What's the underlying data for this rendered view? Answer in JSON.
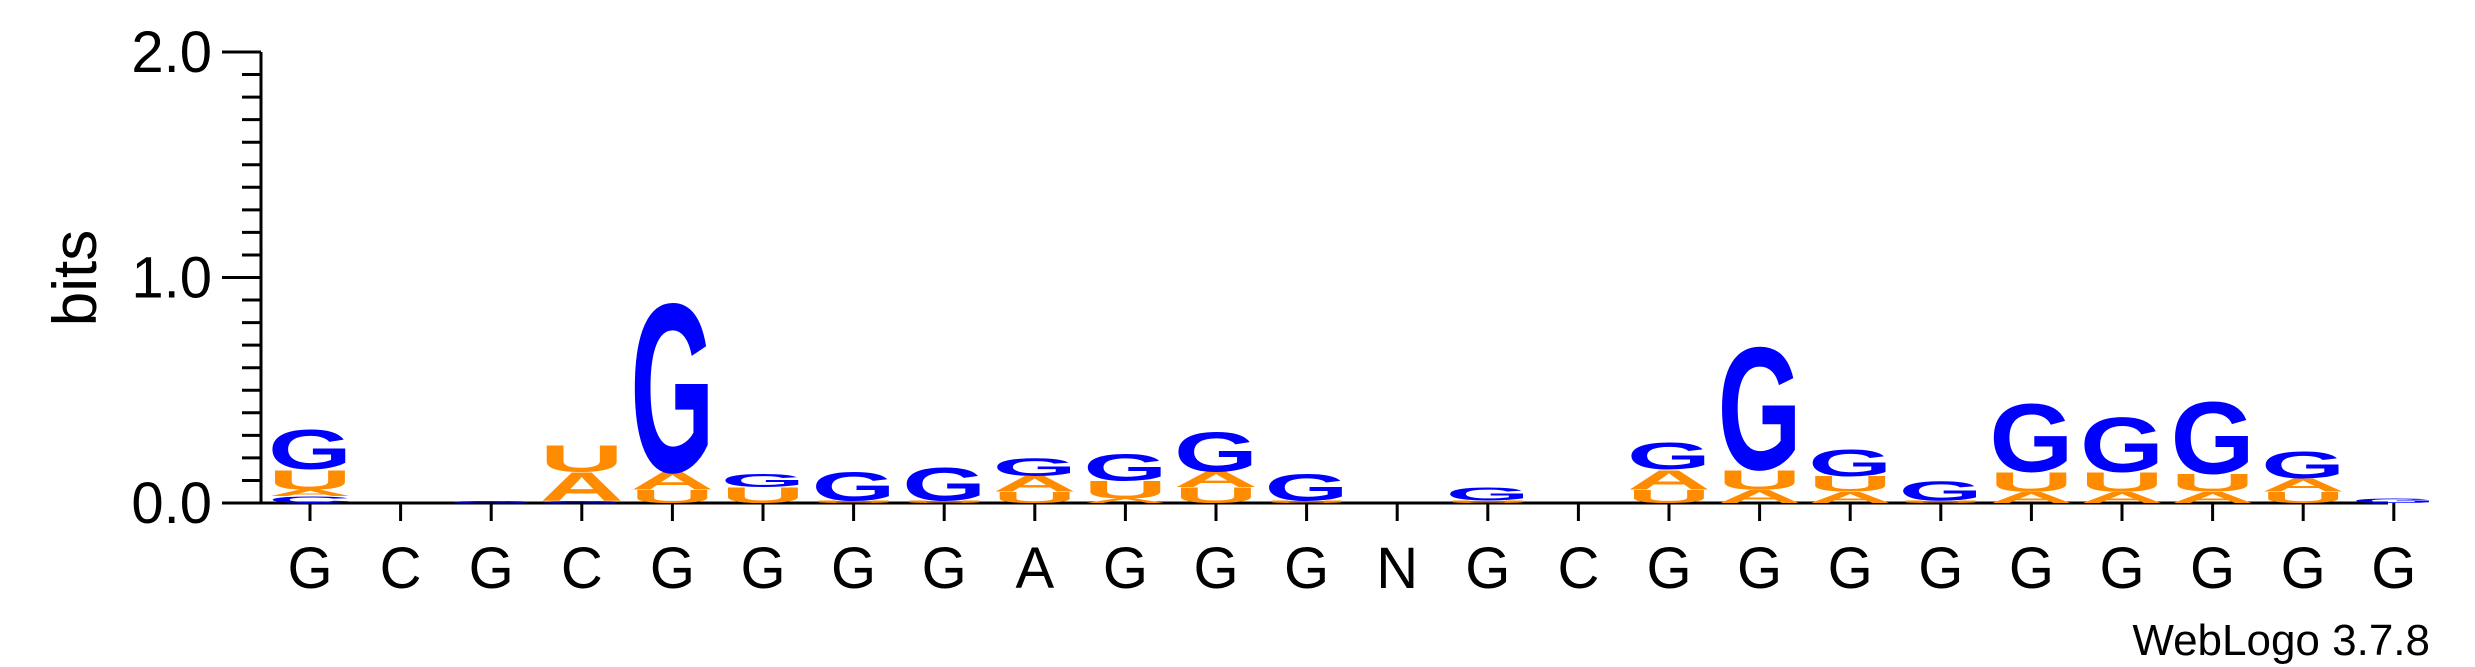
{
  "chart_data": {
    "type": "sequence-logo",
    "ylabel": "bits",
    "ylim": [
      0,
      2.0
    ],
    "yticks": [
      "0.0",
      "1.0",
      "2.0"
    ],
    "credit": "WebLogo 3.7.8",
    "colors": {
      "G": "#0000ff",
      "C": "#0000ff",
      "A": "#ff8c00",
      "U": "#ff8c00"
    },
    "positions": [
      {
        "label": "G",
        "stack": [
          {
            "letter": "C",
            "bits": 0.03
          },
          {
            "letter": "A",
            "bits": 0.03
          },
          {
            "letter": "U",
            "bits": 0.09
          },
          {
            "letter": "G",
            "bits": 0.18
          }
        ]
      },
      {
        "label": "C",
        "stack": []
      },
      {
        "label": "G",
        "stack": [
          {
            "letter": "G",
            "bits": 0.01
          }
        ]
      },
      {
        "label": "C",
        "stack": [
          {
            "letter": "G",
            "bits": 0.01
          },
          {
            "letter": "A",
            "bits": 0.13
          },
          {
            "letter": "U",
            "bits": 0.12
          }
        ]
      },
      {
        "label": "G",
        "stack": [
          {
            "letter": "U",
            "bits": 0.06
          },
          {
            "letter": "A",
            "bits": 0.08
          },
          {
            "letter": "G",
            "bits": 0.77
          }
        ]
      },
      {
        "label": "G",
        "stack": [
          {
            "letter": "U",
            "bits": 0.07
          },
          {
            "letter": "G",
            "bits": 0.06
          }
        ]
      },
      {
        "label": "G",
        "stack": [
          {
            "letter": "U",
            "bits": 0.01
          },
          {
            "letter": "G",
            "bits": 0.13
          }
        ]
      },
      {
        "label": "G",
        "stack": [
          {
            "letter": "U",
            "bits": 0.01
          },
          {
            "letter": "G",
            "bits": 0.15
          }
        ]
      },
      {
        "label": "A",
        "stack": [
          {
            "letter": "U",
            "bits": 0.05
          },
          {
            "letter": "A",
            "bits": 0.07
          },
          {
            "letter": "G",
            "bits": 0.08
          }
        ]
      },
      {
        "label": "G",
        "stack": [
          {
            "letter": "A",
            "bits": 0.02
          },
          {
            "letter": "U",
            "bits": 0.08
          },
          {
            "letter": "G",
            "bits": 0.12
          }
        ]
      },
      {
        "label": "G",
        "stack": [
          {
            "letter": "U",
            "bits": 0.07
          },
          {
            "letter": "A",
            "bits": 0.07
          },
          {
            "letter": "G",
            "bits": 0.18
          }
        ]
      },
      {
        "label": "G",
        "stack": [
          {
            "letter": "U",
            "bits": 0.01
          },
          {
            "letter": "G",
            "bits": 0.12
          }
        ]
      },
      {
        "label": "N",
        "stack": []
      },
      {
        "label": "G",
        "stack": [
          {
            "letter": "U",
            "bits": 0.01
          },
          {
            "letter": "G",
            "bits": 0.06
          }
        ]
      },
      {
        "label": "C",
        "stack": []
      },
      {
        "label": "G",
        "stack": [
          {
            "letter": "U",
            "bits": 0.06
          },
          {
            "letter": "A",
            "bits": 0.09
          },
          {
            "letter": "G",
            "bits": 0.12
          }
        ]
      },
      {
        "label": "G",
        "stack": [
          {
            "letter": "A",
            "bits": 0.06
          },
          {
            "letter": "U",
            "bits": 0.09
          },
          {
            "letter": "G",
            "bits": 0.56
          }
        ]
      },
      {
        "label": "G",
        "stack": [
          {
            "letter": "A",
            "bits": 0.05
          },
          {
            "letter": "U",
            "bits": 0.07
          },
          {
            "letter": "G",
            "bits": 0.12
          }
        ]
      },
      {
        "label": "G",
        "stack": [
          {
            "letter": "U",
            "bits": 0.01
          },
          {
            "letter": "G",
            "bits": 0.09
          }
        ]
      },
      {
        "label": "G",
        "stack": [
          {
            "letter": "A",
            "bits": 0.05
          },
          {
            "letter": "U",
            "bits": 0.09
          },
          {
            "letter": "G",
            "bits": 0.31
          }
        ]
      },
      {
        "label": "G",
        "stack": [
          {
            "letter": "A",
            "bits": 0.05
          },
          {
            "letter": "U",
            "bits": 0.09
          },
          {
            "letter": "G",
            "bits": 0.25
          }
        ]
      },
      {
        "label": "G",
        "stack": [
          {
            "letter": "A",
            "bits": 0.05
          },
          {
            "letter": "U",
            "bits": 0.08
          },
          {
            "letter": "G",
            "bits": 0.33
          }
        ]
      },
      {
        "label": "G",
        "stack": [
          {
            "letter": "U",
            "bits": 0.05
          },
          {
            "letter": "A",
            "bits": 0.06
          },
          {
            "letter": "G",
            "bits": 0.12
          }
        ]
      },
      {
        "label": "G",
        "stack": [
          {
            "letter": "G",
            "bits": 0.02
          }
        ]
      }
    ]
  }
}
